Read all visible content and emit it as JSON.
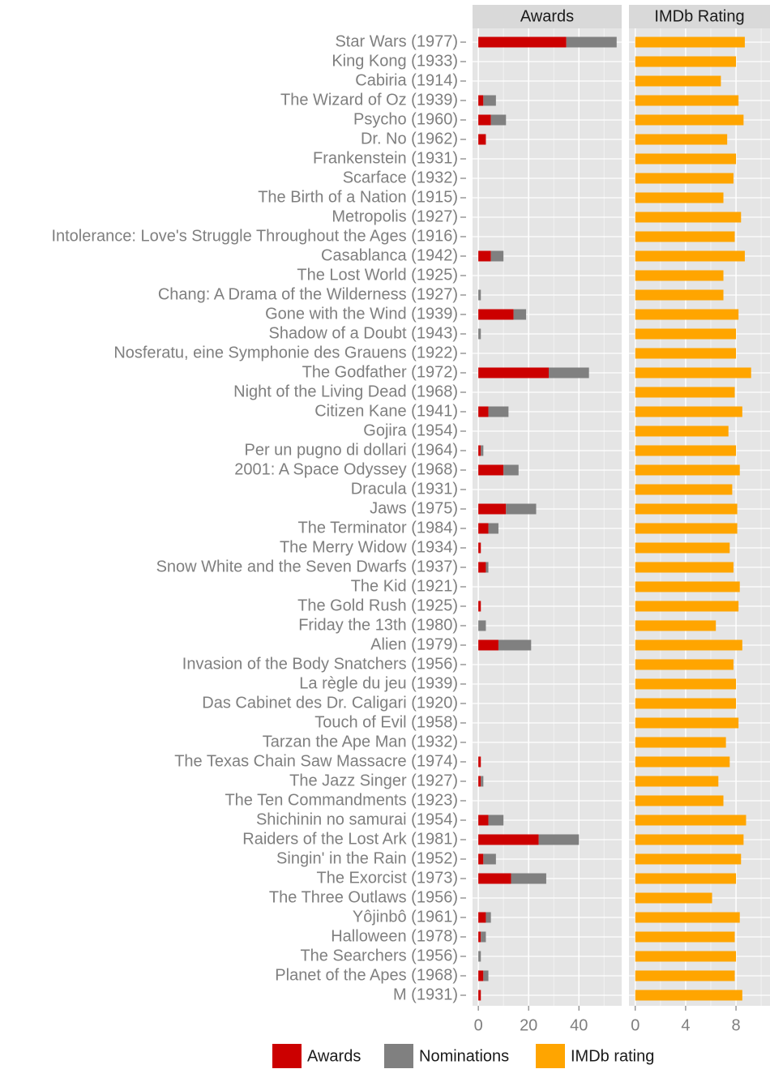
{
  "chart_data": [
    {
      "type": "bar",
      "orientation": "horizontal",
      "stacked": true,
      "title": "Awards",
      "categories": [
        "Star Wars (1977)",
        "King Kong (1933)",
        "Cabiria (1914)",
        "The Wizard of Oz (1939)",
        "Psycho (1960)",
        "Dr. No (1962)",
        "Frankenstein (1931)",
        "Scarface (1932)",
        "The Birth of a Nation (1915)",
        "Metropolis (1927)",
        "Intolerance: Love's Struggle Throughout the Ages (1916)",
        "Casablanca (1942)",
        "The Lost World (1925)",
        "Chang: A Drama of the Wilderness (1927)",
        "Gone with the Wind (1939)",
        "Shadow of a Doubt (1943)",
        "Nosferatu, eine Symphonie des Grauens (1922)",
        "The Godfather (1972)",
        "Night of the Living Dead (1968)",
        "Citizen Kane (1941)",
        "Gojira (1954)",
        "Per un pugno di dollari (1964)",
        "2001: A Space Odyssey (1968)",
        "Dracula (1931)",
        "Jaws (1975)",
        "The Terminator (1984)",
        "The Merry Widow (1934)",
        "Snow White and the Seven Dwarfs (1937)",
        "The Kid (1921)",
        "The Gold Rush (1925)",
        "Friday the 13th (1980)",
        "Alien (1979)",
        "Invasion of the Body Snatchers (1956)",
        "La règle du jeu (1939)",
        "Das Cabinet des Dr. Caligari (1920)",
        "Touch of Evil (1958)",
        "Tarzan the Ape Man (1932)",
        "The Texas Chain Saw Massacre (1974)",
        "The Jazz Singer (1927)",
        "The Ten Commandments (1923)",
        "Shichinin no samurai (1954)",
        "Raiders of the Lost Ark (1981)",
        "Singin' in the Rain (1952)",
        "The Exorcist (1973)",
        "The Three Outlaws (1956)",
        "Yôjinbô (1961)",
        "Halloween (1978)",
        "The Searchers (1956)",
        "Planet of the Apes (1968)",
        "M (1931)"
      ],
      "series": [
        {
          "name": "Awards",
          "color": "#cc0000",
          "values": [
            35,
            0,
            0,
            2,
            5,
            3,
            0,
            0,
            0,
            0,
            0,
            5,
            0,
            0,
            14,
            0,
            0,
            28,
            0,
            4,
            0,
            1,
            10,
            0,
            11,
            4,
            1,
            3,
            0,
            1,
            0,
            8,
            0,
            0,
            0,
            0,
            0,
            1,
            1,
            0,
            4,
            24,
            2,
            13,
            0,
            3,
            1,
            0,
            2,
            1
          ]
        },
        {
          "name": "Nominations",
          "color": "#808080",
          "values": [
            20,
            0,
            0,
            5,
            6,
            0,
            0,
            0,
            0,
            0,
            0,
            5,
            0,
            1,
            5,
            1,
            0,
            16,
            0,
            8,
            0,
            1,
            6,
            0,
            12,
            4,
            0,
            1,
            0,
            0,
            3,
            13,
            0,
            0,
            0,
            0,
            0,
            0,
            1,
            0,
            6,
            16,
            5,
            14,
            0,
            2,
            2,
            1,
            2,
            0
          ]
        }
      ],
      "xlim": [
        -2.3,
        57
      ],
      "xticks": [
        0,
        20,
        40
      ],
      "grid": true
    },
    {
      "type": "bar",
      "orientation": "horizontal",
      "title": "IMDb Rating",
      "series": [
        {
          "name": "IMDb rating",
          "color": "#ffa500",
          "values": [
            8.7,
            8.0,
            6.8,
            8.2,
            8.6,
            7.3,
            8.0,
            7.8,
            7.0,
            8.4,
            7.9,
            8.7,
            7.0,
            7.0,
            8.2,
            8.0,
            8.0,
            9.2,
            7.9,
            8.5,
            7.4,
            8.0,
            8.3,
            7.7,
            8.1,
            8.1,
            7.5,
            7.8,
            8.3,
            8.2,
            6.4,
            8.5,
            7.8,
            8.0,
            8.0,
            8.2,
            7.2,
            7.5,
            6.6,
            7.0,
            8.8,
            8.6,
            8.4,
            8.0,
            6.1,
            8.3,
            7.9,
            8.0,
            7.9,
            8.5
          ]
        }
      ],
      "xlim": [
        -0.5,
        10.7
      ],
      "xticks": [
        0,
        4,
        8
      ],
      "grid": true
    }
  ]
}
